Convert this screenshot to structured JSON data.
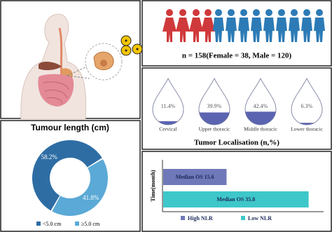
{
  "cohort": {
    "text": "n = 158(Female = 38, Male = 120)"
  },
  "tumour_length": {
    "type": "pie",
    "title": "Tumour length (cm)",
    "categories": [
      "<5.0 cm",
      "≥5.0 cm"
    ],
    "values": [
      58.2,
      41.8
    ],
    "value_labels": [
      "58.2%",
      "41.8%"
    ],
    "colors": [
      "#2e6da4",
      "#5aa9d6"
    ]
  },
  "localisation": {
    "title": "Tumor Localisation (n,%)",
    "categories": [
      "Cervical",
      "Upper thoracic",
      "Middle thoracic",
      "Lower thoracic"
    ],
    "values": [
      11.4,
      39.9,
      42.4,
      6.3
    ],
    "value_labels": [
      "11.4%",
      "39.9%",
      "42.4%",
      "6.3%"
    ],
    "color": "#5b64b0"
  },
  "survival": {
    "type": "bar",
    "axis_label": "Time(month)",
    "series": [
      {
        "name": "High NLR",
        "color": "#6f78b8",
        "values": [
          15.6
        ],
        "value_labels": [
          "Median OS 15.6"
        ]
      },
      {
        "name": "Low NLR",
        "color": "#3ec7c9",
        "values": [
          35.8
        ],
        "value_labels": [
          "Median OS 35.8"
        ]
      }
    ]
  }
}
